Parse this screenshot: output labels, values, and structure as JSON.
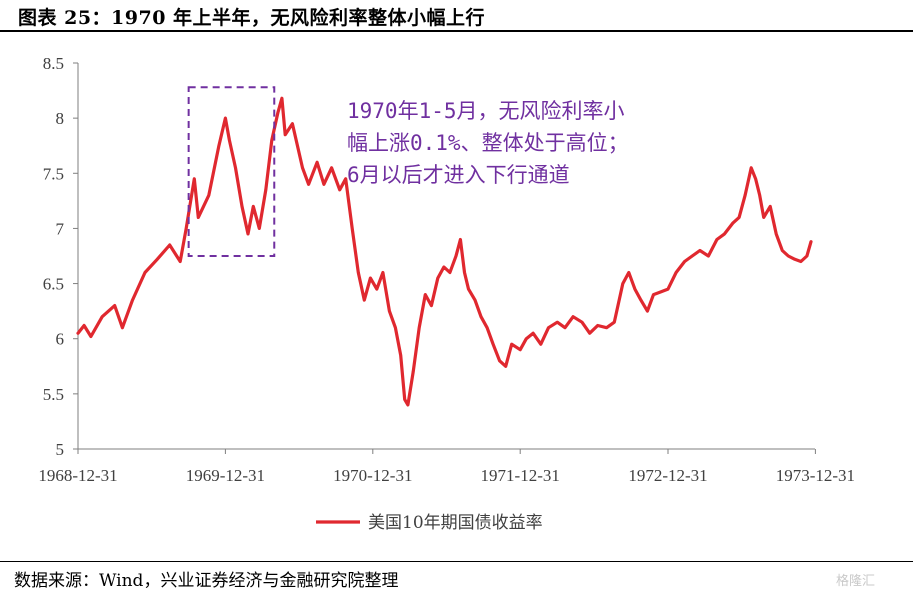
{
  "title": "图表 25：1970 年上半年，无风险利率整体小幅上行",
  "source": "数据来源：Wind，兴业证券经济与金融研究院整理",
  "watermark": "格隆汇",
  "colors": {
    "line": "#e0282f",
    "annotation": "#7030a0",
    "axis": "#7f7f7f",
    "text": "#404040"
  },
  "chart_data": {
    "type": "line",
    "title": "",
    "xlabel": "",
    "ylabel": "",
    "ylim": [
      5,
      8.5
    ],
    "y_ticks": [
      "8.5",
      "8",
      "7.5",
      "7",
      "6.5",
      "6",
      "5.5",
      "5"
    ],
    "x_ticks": [
      "1968-12-31",
      "1969-12-31",
      "1970-12-31",
      "1971-12-31",
      "1972-12-31",
      "1973-12-31"
    ],
    "grid": false,
    "legend": "bottom-center",
    "annotation": {
      "lines": [
        "1970年1-5月，无风险利率小",
        "幅上涨0.1%、整体处于高位；",
        "6月以后才进入下行通道"
      ],
      "highlight_box": {
        "x_from": "1969-10",
        "x_to": "1970-05",
        "y_from": 6.75,
        "y_to": 8.28
      }
    },
    "series": [
      {
        "name": "美国10年期国债收益率",
        "color": "#e0282f",
        "points": [
          [
            "1968-12-31",
            6.05
          ],
          [
            "1969-01-15",
            6.12
          ],
          [
            "1969-02-01",
            6.02
          ],
          [
            "1969-03-01",
            6.2
          ],
          [
            "1969-04-01",
            6.3
          ],
          [
            "1969-04-20",
            6.1
          ],
          [
            "1969-05-15",
            6.35
          ],
          [
            "1969-06-15",
            6.6
          ],
          [
            "1969-07-15",
            6.72
          ],
          [
            "1969-08-15",
            6.85
          ],
          [
            "1969-09-10",
            6.7
          ],
          [
            "1969-09-25",
            7.0
          ],
          [
            "1969-10-15",
            7.45
          ],
          [
            "1969-10-25",
            7.1
          ],
          [
            "1969-11-20",
            7.3
          ],
          [
            "1969-12-15",
            7.75
          ],
          [
            "1969-12-31",
            8.0
          ],
          [
            "1970-01-10",
            7.8
          ],
          [
            "1970-01-25",
            7.55
          ],
          [
            "1970-02-10",
            7.2
          ],
          [
            "1970-02-25",
            6.95
          ],
          [
            "1970-03-10",
            7.2
          ],
          [
            "1970-03-25",
            7.0
          ],
          [
            "1970-04-10",
            7.35
          ],
          [
            "1970-04-25",
            7.8
          ],
          [
            "1970-05-10",
            8.05
          ],
          [
            "1970-05-20",
            8.18
          ],
          [
            "1970-05-28",
            7.85
          ],
          [
            "1970-06-15",
            7.95
          ],
          [
            "1970-07-10",
            7.55
          ],
          [
            "1970-07-25",
            7.4
          ],
          [
            "1970-08-15",
            7.6
          ],
          [
            "1970-09-01",
            7.4
          ],
          [
            "1970-09-20",
            7.55
          ],
          [
            "1970-10-10",
            7.35
          ],
          [
            "1970-10-25",
            7.45
          ],
          [
            "1970-11-10",
            7.0
          ],
          [
            "1970-11-25",
            6.6
          ],
          [
            "1970-12-10",
            6.35
          ],
          [
            "1970-12-25",
            6.55
          ],
          [
            "1971-01-10",
            6.45
          ],
          [
            "1971-01-25",
            6.6
          ],
          [
            "1971-02-10",
            6.25
          ],
          [
            "1971-02-25",
            6.1
          ],
          [
            "1971-03-10",
            5.85
          ],
          [
            "1971-03-20",
            5.45
          ],
          [
            "1971-03-28",
            5.4
          ],
          [
            "1971-04-10",
            5.7
          ],
          [
            "1971-04-25",
            6.1
          ],
          [
            "1971-05-10",
            6.4
          ],
          [
            "1971-05-25",
            6.3
          ],
          [
            "1971-06-10",
            6.55
          ],
          [
            "1971-06-25",
            6.65
          ],
          [
            "1971-07-10",
            6.6
          ],
          [
            "1971-07-25",
            6.75
          ],
          [
            "1971-08-05",
            6.9
          ],
          [
            "1971-08-15",
            6.6
          ],
          [
            "1971-08-25",
            6.45
          ],
          [
            "1971-09-10",
            6.35
          ],
          [
            "1971-09-25",
            6.2
          ],
          [
            "1971-10-10",
            6.1
          ],
          [
            "1971-10-25",
            5.95
          ],
          [
            "1971-11-10",
            5.8
          ],
          [
            "1971-11-25",
            5.75
          ],
          [
            "1971-12-10",
            5.95
          ],
          [
            "1971-12-31",
            5.9
          ],
          [
            "1972-01-15",
            6.0
          ],
          [
            "1972-02-01",
            6.05
          ],
          [
            "1972-02-20",
            5.95
          ],
          [
            "1972-03-10",
            6.1
          ],
          [
            "1972-04-01",
            6.15
          ],
          [
            "1972-04-20",
            6.1
          ],
          [
            "1972-05-10",
            6.2
          ],
          [
            "1972-06-01",
            6.15
          ],
          [
            "1972-06-20",
            6.05
          ],
          [
            "1972-07-10",
            6.12
          ],
          [
            "1972-08-01",
            6.1
          ],
          [
            "1972-08-20",
            6.15
          ],
          [
            "1972-09-10",
            6.5
          ],
          [
            "1972-09-25",
            6.6
          ],
          [
            "1972-10-10",
            6.45
          ],
          [
            "1972-10-25",
            6.35
          ],
          [
            "1972-11-10",
            6.25
          ],
          [
            "1972-11-25",
            6.4
          ],
          [
            "1972-12-10",
            6.42
          ],
          [
            "1972-12-31",
            6.45
          ],
          [
            "1973-01-20",
            6.6
          ],
          [
            "1973-02-10",
            6.7
          ],
          [
            "1973-03-01",
            6.75
          ],
          [
            "1973-03-20",
            6.8
          ],
          [
            "1973-04-10",
            6.75
          ],
          [
            "1973-05-01",
            6.9
          ],
          [
            "1973-05-20",
            6.95
          ],
          [
            "1973-06-10",
            7.05
          ],
          [
            "1973-06-25",
            7.1
          ],
          [
            "1973-07-10",
            7.3
          ],
          [
            "1973-07-25",
            7.55
          ],
          [
            "1973-08-05",
            7.45
          ],
          [
            "1973-08-15",
            7.3
          ],
          [
            "1973-08-25",
            7.1
          ],
          [
            "1973-09-10",
            7.2
          ],
          [
            "1973-09-25",
            6.95
          ],
          [
            "1973-10-10",
            6.8
          ],
          [
            "1973-10-25",
            6.75
          ],
          [
            "1973-11-10",
            6.72
          ],
          [
            "1973-11-25",
            6.7
          ],
          [
            "1973-12-10",
            6.75
          ],
          [
            "1973-12-20",
            6.88
          ]
        ]
      }
    ]
  }
}
